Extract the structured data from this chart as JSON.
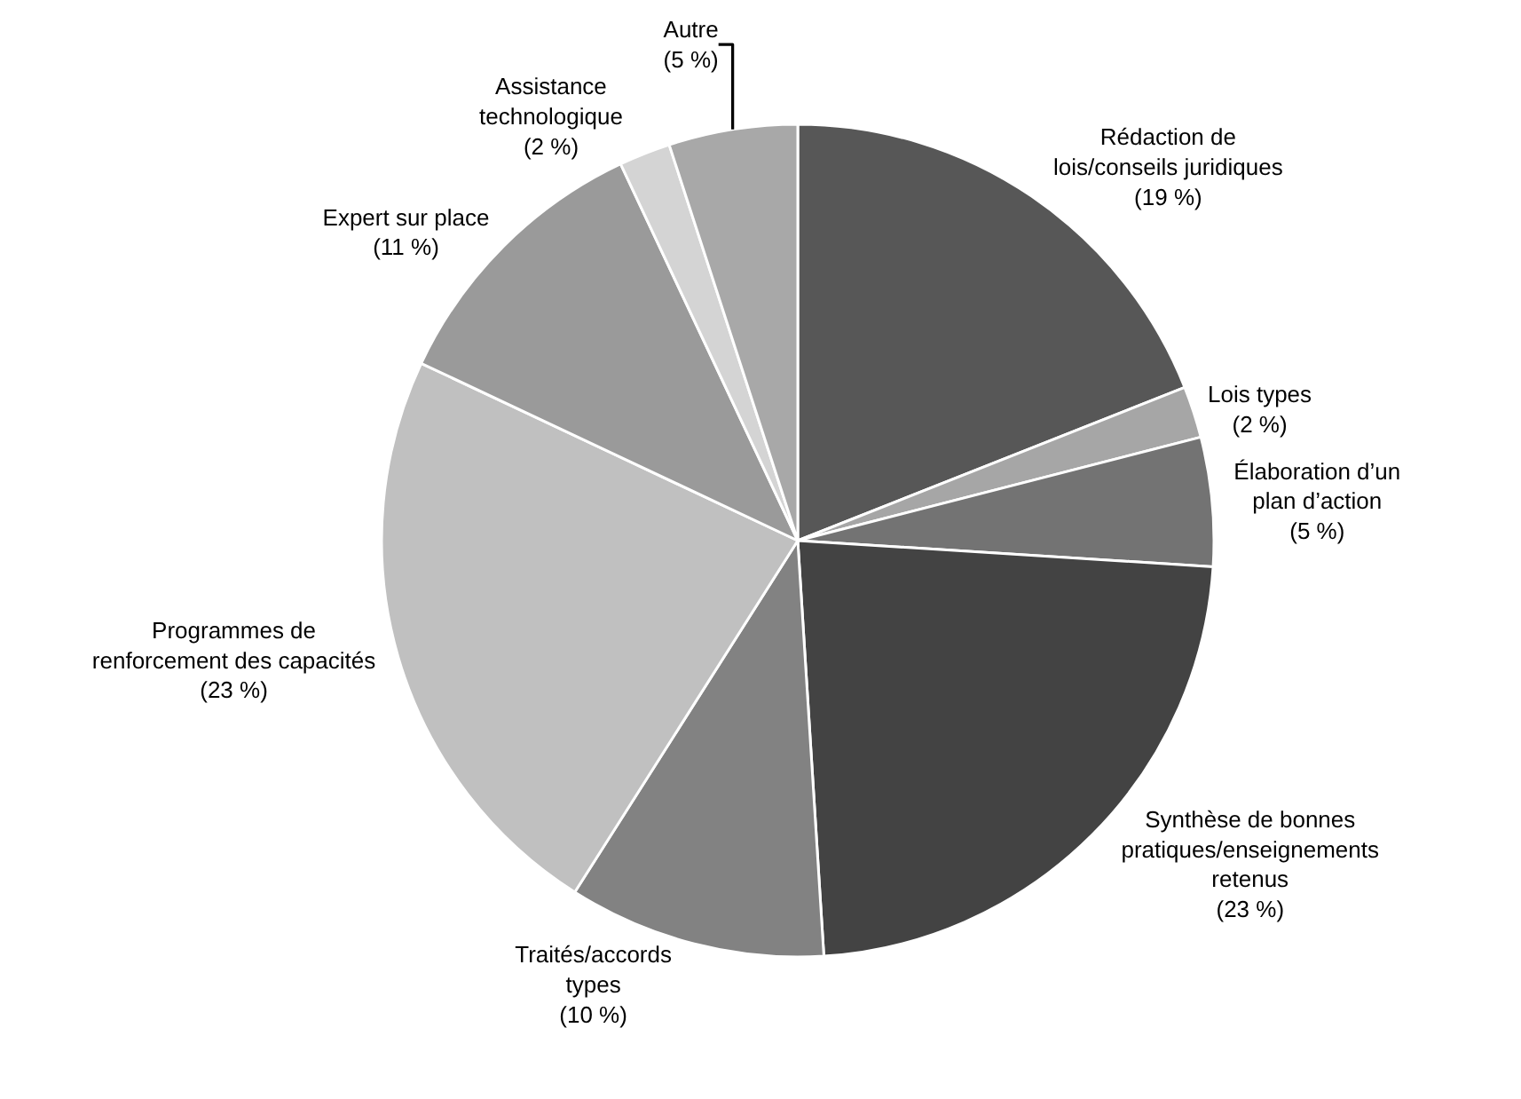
{
  "chart_data": {
    "type": "pie",
    "categories": [
      "Rédaction de\nlois/conseils juridiques",
      "Lois types",
      "Élaboration d’un\nplan d’action",
      "Synthèse de bonnes\npratiques/enseignements\nretenus",
      "Traités/accords\ntypes",
      "Programmes de\nrenforcement des capacités",
      "Expert sur place",
      "Assistance\ntechnologique",
      "Autre"
    ],
    "values": [
      19,
      2,
      5,
      23,
      10,
      23,
      11,
      2,
      5
    ],
    "value_labels": [
      "(19 %)",
      "(2 %)",
      "(5 %)",
      "(23 %)",
      "(10 %)",
      "(23 %)",
      "(11 %)",
      "(2 %)",
      "(5 %)"
    ],
    "colors": [
      "#575757",
      "#a6a6a6",
      "#737373",
      "#434343",
      "#828282",
      "#c0c0c0",
      "#9a9a9a",
      "#d4d4d4",
      "#a8a8a8"
    ],
    "legend": false
  }
}
